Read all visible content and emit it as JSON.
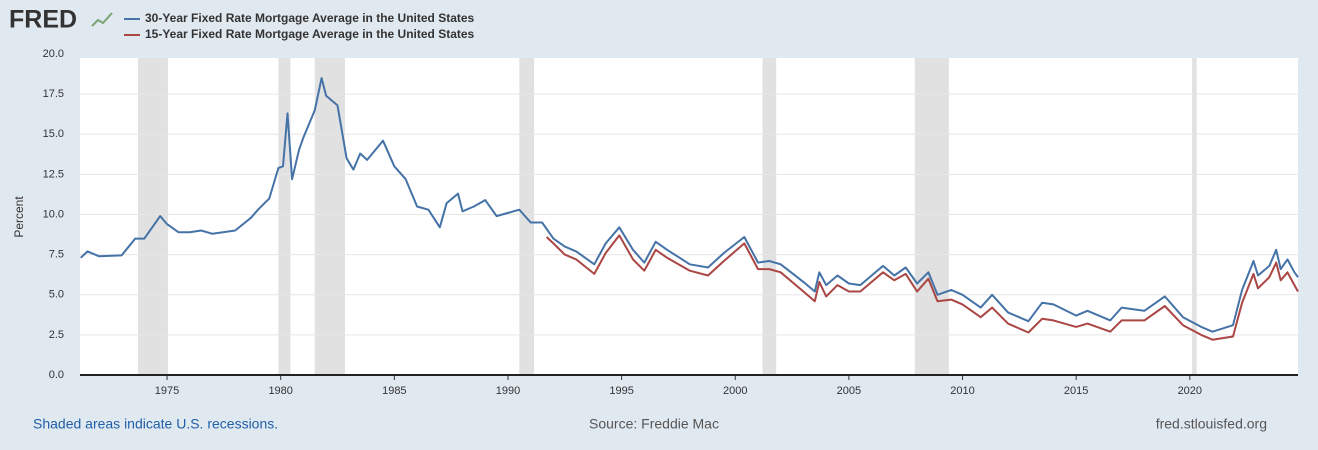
{
  "chart_data": {
    "type": "line",
    "logo": "FRED",
    "ylabel": "Percent",
    "note": "Shaded areas indicate U.S. recessions.",
    "source": "Source: Freddie Mac",
    "site": "fred.stlouisfed.org",
    "xlim": [
      1971.17,
      2024.76
    ],
    "ylim": [
      0,
      20
    ],
    "xticks": [
      1975,
      1980,
      1985,
      1990,
      1995,
      2000,
      2005,
      2010,
      2015,
      2020
    ],
    "yticks": [
      {
        "value": 0,
        "label": "0.0"
      },
      2.5,
      {
        "value": 5,
        "label": "5.0"
      },
      7.5,
      {
        "value": 10,
        "label": "10.0"
      },
      12.5,
      {
        "value": 15,
        "label": "15.0"
      },
      17.5,
      {
        "value": 20,
        "label": "20.0"
      }
    ],
    "grid": true,
    "recession_color": "#e1e1e1",
    "recessions": [
      [
        1973.72,
        1975.04
      ],
      [
        1979.9,
        1980.43
      ],
      [
        1981.5,
        1982.83
      ],
      [
        1990.5,
        1991.15
      ],
      [
        2001.2,
        2001.8
      ],
      [
        2007.9,
        2009.4
      ],
      [
        2020.1,
        2020.3
      ]
    ],
    "series": [
      {
        "name": "30-Year Fixed Rate Mortgage Average in the United States",
        "color": "#4572a7",
        "x": [
          1971.2,
          1971.5,
          1972,
          1973,
          1973.6,
          1974,
          1974.7,
          1975,
          1975.5,
          1976,
          1976.5,
          1977,
          1978,
          1978.7,
          1979,
          1979.5,
          1979.9,
          1980.1,
          1980.3,
          1980.5,
          1980.8,
          1981,
          1981.5,
          1981.8,
          1982,
          1982.5,
          1982.9,
          1983.2,
          1983.5,
          1983.8,
          1984.5,
          1985,
          1985.5,
          1986,
          1986.5,
          1987,
          1987.3,
          1987.8,
          1988,
          1988.5,
          1989,
          1989.5,
          1990,
          1990.5,
          1991,
          1991.5,
          1992,
          1992.5,
          1993,
          1993.8,
          1994.3,
          1994.9,
          1995.5,
          1996,
          1996.5,
          1997,
          1998,
          1998.8,
          1999.5,
          2000.4,
          2001,
          2001.5,
          2002,
          2003,
          2003.5,
          2003.7,
          2004,
          2004.5,
          2005,
          2005.5,
          2006.5,
          2007,
          2007.5,
          2008,
          2008.5,
          2008.9,
          2009.5,
          2010,
          2010.8,
          2011.3,
          2012,
          2012.9,
          2013.5,
          2014,
          2015,
          2015.5,
          2016.5,
          2017,
          2018,
          2018.9,
          2019.7,
          2020.5,
          2021,
          2021.9,
          2022.3,
          2022.8,
          2023,
          2023.5,
          2023.8,
          2024,
          2024.3,
          2024.6,
          2024.76
        ],
        "values": [
          7.3,
          7.7,
          7.4,
          7.45,
          8.5,
          8.5,
          9.9,
          9.4,
          8.9,
          8.9,
          9.0,
          8.8,
          9.0,
          9.8,
          10.3,
          11,
          12.9,
          13.0,
          16.3,
          12.2,
          14,
          14.8,
          16.5,
          18.5,
          17.4,
          16.8,
          13.5,
          12.8,
          13.8,
          13.4,
          14.6,
          13,
          12.2,
          10.5,
          10.3,
          9.2,
          10.7,
          11.3,
          10.2,
          10.5,
          10.9,
          9.9,
          10.1,
          10.3,
          9.5,
          9.5,
          8.5,
          8.0,
          7.7,
          6.9,
          8.2,
          9.2,
          7.8,
          7.0,
          8.3,
          7.8,
          6.9,
          6.7,
          7.6,
          8.6,
          7.0,
          7.1,
          6.9,
          5.8,
          5.2,
          6.4,
          5.6,
          6.2,
          5.7,
          5.6,
          6.8,
          6.2,
          6.7,
          5.7,
          6.4,
          5.0,
          5.3,
          5.0,
          4.2,
          5.0,
          3.9,
          3.35,
          4.5,
          4.4,
          3.7,
          4.0,
          3.4,
          4.2,
          4.0,
          4.9,
          3.6,
          3.0,
          2.7,
          3.1,
          5.3,
          7.1,
          6.2,
          6.8,
          7.8,
          6.6,
          7.2,
          6.4,
          6.1
        ]
      },
      {
        "name": "15-Year Fixed Rate Mortgage Average in the United States",
        "color": "#aa4643",
        "x": [
          1991.7,
          1992,
          1992.5,
          1993,
          1993.8,
          1994.3,
          1994.9,
          1995.5,
          1996,
          1996.5,
          1997,
          1998,
          1998.8,
          1999.5,
          2000.4,
          2001,
          2001.5,
          2002,
          2003,
          2003.5,
          2003.7,
          2004,
          2004.5,
          2005,
          2005.5,
          2006.5,
          2007,
          2007.5,
          2008,
          2008.5,
          2008.9,
          2009.5,
          2010,
          2010.8,
          2011.3,
          2012,
          2012.9,
          2013.5,
          2014,
          2015,
          2015.5,
          2016.5,
          2017,
          2018,
          2018.9,
          2019.7,
          2020.5,
          2021,
          2021.9,
          2022.3,
          2022.8,
          2023,
          2023.5,
          2023.8,
          2024,
          2024.3,
          2024.6,
          2024.76
        ],
        "values": [
          8.6,
          8.2,
          7.5,
          7.2,
          6.3,
          7.6,
          8.7,
          7.2,
          6.5,
          7.8,
          7.3,
          6.5,
          6.2,
          7.1,
          8.2,
          6.6,
          6.6,
          6.4,
          5.2,
          4.6,
          5.8,
          4.9,
          5.6,
          5.2,
          5.2,
          6.4,
          5.9,
          6.3,
          5.2,
          6.0,
          4.6,
          4.7,
          4.4,
          3.6,
          4.2,
          3.2,
          2.65,
          3.5,
          3.4,
          3.0,
          3.2,
          2.7,
          3.4,
          3.4,
          4.3,
          3.1,
          2.5,
          2.2,
          2.4,
          4.5,
          6.3,
          5.4,
          6.1,
          7.0,
          5.9,
          6.4,
          5.6,
          5.2
        ]
      }
    ]
  }
}
